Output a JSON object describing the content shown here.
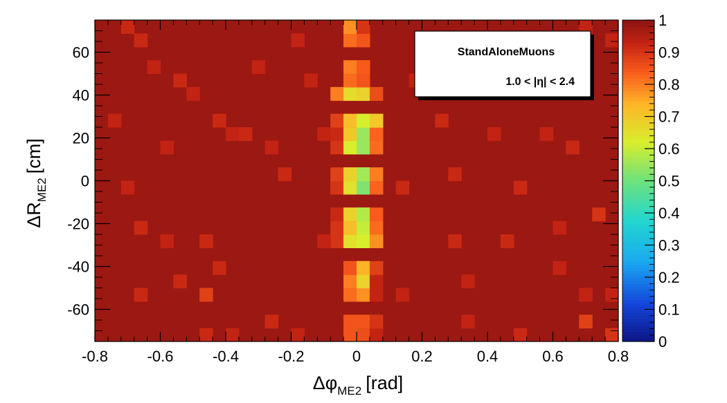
{
  "chart_data": {
    "type": "heatmap",
    "title": "",
    "xlabel": "Δφ",
    "xlabel_subscript": "ME2",
    "xlabel_unit": "[rad]",
    "ylabel": "ΔR",
    "ylabel_subscript": "ME2",
    "ylabel_unit": "[cm]",
    "xlim": [
      -0.8,
      0.8
    ],
    "ylim": [
      -75,
      75
    ],
    "zlim": [
      0,
      1
    ],
    "x_ticks": [
      -0.8,
      -0.6,
      -0.4,
      -0.2,
      0,
      0.2,
      0.4,
      0.6,
      0.8
    ],
    "x_tick_labels": [
      "-0.8",
      "-0.6",
      "-0.4",
      "-0.2",
      "0",
      "0.2",
      "0.4",
      "0.6",
      "0.8"
    ],
    "y_ticks": [
      -60,
      -40,
      -20,
      0,
      20,
      40,
      60
    ],
    "y_tick_labels": [
      "-60",
      "-40",
      "-20",
      "0",
      "20",
      "40",
      "60"
    ],
    "z_ticks": [
      0,
      0.1,
      0.2,
      0.3,
      0.4,
      0.5,
      0.6,
      0.7,
      0.8,
      0.9,
      1
    ],
    "z_tick_labels": [
      "0",
      "0.1",
      "0.2",
      "0.3",
      "0.4",
      "0.5",
      "0.6",
      "0.7",
      "0.8",
      "0.9",
      "1"
    ],
    "nx": 40,
    "ny": 24,
    "background_value": 0.98,
    "cells": [
      [
        -0.0,
        -75,
        0.85
      ],
      [
        -0.02,
        -75,
        0.88
      ],
      [
        0.0,
        -75,
        0.9
      ],
      [
        0.02,
        -75,
        0.93
      ],
      [
        -0.04,
        -69,
        0.92
      ],
      [
        -0.02,
        -69,
        0.85
      ],
      [
        0.0,
        -69,
        0.88
      ],
      [
        0.02,
        -69,
        0.86
      ],
      [
        0.04,
        -69,
        0.93
      ],
      [
        -0.02,
        -63,
        0.85
      ],
      [
        0.0,
        -63,
        0.93
      ],
      [
        0.02,
        -63,
        0.85
      ],
      [
        0.04,
        -63,
        0.9
      ],
      [
        -0.04,
        -56,
        0.9
      ],
      [
        -0.02,
        -56,
        0.92
      ],
      [
        0.0,
        -56,
        0.88
      ],
      [
        0.02,
        -56,
        0.85
      ],
      [
        -0.02,
        -50,
        0.82
      ],
      [
        0.0,
        -50,
        0.75
      ],
      [
        0.02,
        -50,
        0.78
      ],
      [
        0.04,
        -50,
        0.93
      ],
      [
        -0.04,
        -44,
        0.9
      ],
      [
        -0.02,
        -44,
        0.8
      ],
      [
        0.0,
        -44,
        0.72
      ],
      [
        0.02,
        -44,
        0.68
      ],
      [
        0.04,
        -44,
        0.93
      ],
      [
        -0.04,
        -38,
        0.86
      ],
      [
        -0.02,
        -38,
        0.85
      ],
      [
        0.0,
        -38,
        0.73
      ],
      [
        0.02,
        -38,
        0.74
      ],
      [
        0.04,
        -38,
        0.88
      ],
      [
        -0.06,
        -31,
        0.88
      ],
      [
        -0.04,
        -31,
        0.85
      ],
      [
        -0.02,
        -31,
        0.68
      ],
      [
        0.0,
        -31,
        0.62
      ],
      [
        0.02,
        -31,
        0.7
      ],
      [
        0.04,
        -31,
        0.78
      ],
      [
        0.06,
        -31,
        0.82
      ],
      [
        -0.06,
        -25,
        0.9
      ],
      [
        -0.04,
        -25,
        0.8
      ],
      [
        -0.02,
        -25,
        0.65
      ],
      [
        0.0,
        -25,
        0.6
      ],
      [
        0.02,
        -25,
        0.62
      ],
      [
        0.04,
        -25,
        0.78
      ],
      [
        -0.06,
        -19,
        0.9
      ],
      [
        -0.04,
        -19,
        0.78
      ],
      [
        -0.02,
        -19,
        0.72
      ],
      [
        0.0,
        -19,
        0.62
      ],
      [
        0.02,
        -19,
        0.6
      ],
      [
        0.04,
        -19,
        0.82
      ],
      [
        -0.06,
        -13,
        0.92
      ],
      [
        -0.04,
        -13,
        0.84
      ],
      [
        -0.02,
        -13,
        0.68
      ],
      [
        0.0,
        -13,
        0.55
      ],
      [
        0.02,
        -13,
        0.58
      ],
      [
        0.04,
        -13,
        0.84
      ],
      [
        -0.06,
        -6,
        0.9
      ],
      [
        -0.04,
        -6,
        0.82
      ],
      [
        -0.02,
        -6,
        0.68
      ],
      [
        0.0,
        -6,
        0.58
      ],
      [
        0.02,
        -6,
        0.55
      ],
      [
        0.04,
        -6,
        0.86
      ],
      [
        -0.06,
        0,
        0.9
      ],
      [
        -0.04,
        0,
        0.8
      ],
      [
        -0.02,
        0,
        0.65
      ],
      [
        0.0,
        0,
        0.55
      ],
      [
        0.02,
        0,
        0.52
      ],
      [
        0.04,
        0,
        0.83
      ],
      [
        -0.06,
        6,
        0.88
      ],
      [
        -0.04,
        6,
        0.78
      ],
      [
        -0.02,
        6,
        0.68
      ],
      [
        0.0,
        6,
        0.6
      ],
      [
        0.02,
        6,
        0.56
      ],
      [
        0.04,
        6,
        0.8
      ],
      [
        -0.06,
        13,
        0.9
      ],
      [
        -0.04,
        13,
        0.84
      ],
      [
        -0.02,
        13,
        0.62
      ],
      [
        0.0,
        13,
        0.42
      ],
      [
        0.02,
        13,
        0.55
      ],
      [
        0.04,
        13,
        0.82
      ],
      [
        -0.06,
        19,
        0.9
      ],
      [
        -0.04,
        19,
        0.8
      ],
      [
        -0.02,
        19,
        0.55
      ],
      [
        0.0,
        19,
        0.5
      ],
      [
        0.02,
        19,
        0.52
      ],
      [
        0.04,
        19,
        0.8
      ],
      [
        -0.06,
        25,
        0.92
      ],
      [
        -0.04,
        25,
        0.78
      ],
      [
        -0.02,
        25,
        0.7
      ],
      [
        0.0,
        25,
        0.48
      ],
      [
        0.02,
        25,
        0.55
      ],
      [
        0.04,
        25,
        0.75
      ],
      [
        0.06,
        25,
        0.83
      ],
      [
        -0.06,
        31,
        0.88
      ],
      [
        -0.04,
        31,
        0.86
      ],
      [
        -0.02,
        31,
        0.72
      ],
      [
        0.0,
        31,
        0.62
      ],
      [
        0.02,
        31,
        0.62
      ],
      [
        0.04,
        31,
        0.68
      ],
      [
        0.06,
        31,
        0.7
      ],
      [
        -0.06,
        38,
        0.8
      ],
      [
        -0.04,
        38,
        0.84
      ],
      [
        -0.02,
        38,
        0.66
      ],
      [
        0.0,
        38,
        0.62
      ],
      [
        0.02,
        38,
        0.68
      ],
      [
        0.04,
        38,
        0.86
      ],
      [
        -0.04,
        44,
        0.88
      ],
      [
        -0.02,
        44,
        0.74
      ],
      [
        0.0,
        44,
        0.7
      ],
      [
        0.02,
        44,
        0.85
      ],
      [
        -0.04,
        50,
        0.9
      ],
      [
        -0.02,
        50,
        0.82
      ],
      [
        0.0,
        50,
        0.66
      ],
      [
        0.02,
        50,
        0.85
      ],
      [
        -0.04,
        56,
        0.92
      ],
      [
        -0.02,
        56,
        0.8
      ],
      [
        0.0,
        56,
        0.82
      ],
      [
        0.02,
        56,
        0.84
      ],
      [
        -0.04,
        63,
        0.9
      ],
      [
        -0.02,
        63,
        0.82
      ],
      [
        0.0,
        63,
        0.84
      ],
      [
        0.02,
        63,
        0.85
      ],
      [
        -0.02,
        69,
        0.82
      ],
      [
        0.0,
        69,
        0.88
      ],
      [
        0.02,
        69,
        0.86
      ],
      [
        -0.02,
        75,
        0.78
      ],
      [
        0.0,
        75,
        0.9
      ],
      [
        -0.72,
        75,
        0.92
      ],
      [
        -0.68,
        63,
        0.92
      ],
      [
        -0.62,
        56,
        0.93
      ],
      [
        -0.56,
        44,
        0.92
      ],
      [
        -0.52,
        38,
        0.93
      ],
      [
        -0.44,
        31,
        0.92
      ],
      [
        -0.4,
        25,
        0.93
      ],
      [
        -0.34,
        19,
        0.92
      ],
      [
        -0.28,
        13,
        0.93
      ],
      [
        -0.22,
        6,
        0.92
      ],
      [
        -0.72,
        -6,
        0.93
      ],
      [
        -0.66,
        -19,
        0.92
      ],
      [
        -0.58,
        -25,
        0.93
      ],
      [
        -0.48,
        -31,
        0.92
      ],
      [
        -0.42,
        -38,
        0.92
      ],
      [
        -0.56,
        -44,
        0.92
      ],
      [
        -0.46,
        -50,
        0.88
      ],
      [
        -0.68,
        -56,
        0.92
      ],
      [
        -0.26,
        -63,
        0.92
      ],
      [
        -0.18,
        -69,
        0.93
      ],
      [
        -0.46,
        -75,
        0.92
      ],
      [
        -0.38,
        -75,
        0.93
      ],
      [
        0.14,
        -6,
        0.92
      ],
      [
        0.16,
        44,
        0.93
      ],
      [
        0.24,
        31,
        0.92
      ],
      [
        0.28,
        -25,
        0.92
      ],
      [
        0.34,
        -44,
        0.93
      ],
      [
        0.3,
        6,
        0.92
      ],
      [
        0.4,
        19,
        0.93
      ],
      [
        0.46,
        -31,
        0.92
      ],
      [
        0.5,
        -6,
        0.92
      ],
      [
        0.56,
        25,
        0.93
      ],
      [
        0.6,
        -19,
        0.93
      ],
      [
        0.62,
        -38,
        0.93
      ],
      [
        0.66,
        13,
        0.92
      ],
      [
        0.68,
        -56,
        0.93
      ],
      [
        0.72,
        -13,
        0.9
      ],
      [
        0.76,
        -50,
        0.93
      ],
      [
        0.78,
        -69,
        0.9
      ],
      [
        0.7,
        -63,
        0.88
      ],
      [
        0.76,
        63,
        0.93
      ],
      [
        0.7,
        75,
        0.93
      ],
      [
        0.5,
        -69,
        0.92
      ],
      [
        0.34,
        -63,
        0.93
      ],
      [
        0.14,
        -56,
        0.93
      ],
      [
        -0.12,
        -31,
        0.93
      ],
      [
        -0.12,
        25,
        0.93
      ],
      [
        -0.14,
        50,
        0.93
      ],
      [
        -0.32,
        56,
        0.93
      ],
      [
        -0.2,
        63,
        0.93
      ],
      [
        -0.58,
        13,
        0.93
      ],
      [
        -0.74,
        31,
        0.93
      ]
    ]
  },
  "legend": {
    "title": "StandAloneMuons",
    "subtitle": "1.0 < |η| < 2.4",
    "placement": "top-right"
  },
  "colors": {
    "frame": "#000000",
    "panel_background": "#ffffff"
  }
}
